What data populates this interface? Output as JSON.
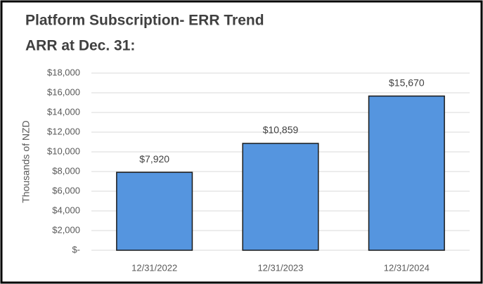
{
  "chart_data": {
    "type": "bar",
    "title": "Platform Subscription- ERR Trend",
    "subtitle": "ARR at Dec. 31:",
    "ylabel": "Thousands of NZD",
    "categories": [
      "12/31/2022",
      "12/31/2023",
      "12/31/2024"
    ],
    "values": [
      7920,
      10859,
      15670
    ],
    "value_labels": [
      "$7,920",
      "$10,859",
      "$15,670"
    ],
    "color": "#5595df",
    "ylim": [
      0,
      18000
    ],
    "yticks": [
      {
        "value": 0,
        "label": "$-"
      },
      {
        "value": 2000,
        "label": "$2,000"
      },
      {
        "value": 4000,
        "label": "$4,000"
      },
      {
        "value": 6000,
        "label": "$6,000"
      },
      {
        "value": 8000,
        "label": "$8,000"
      },
      {
        "value": 10000,
        "label": "$10,000"
      },
      {
        "value": 12000,
        "label": "$12,000"
      },
      {
        "value": 14000,
        "label": "$14,000"
      },
      {
        "value": 16000,
        "label": "$16,000"
      },
      {
        "value": 18000,
        "label": "$18,000"
      }
    ],
    "grid": true
  }
}
